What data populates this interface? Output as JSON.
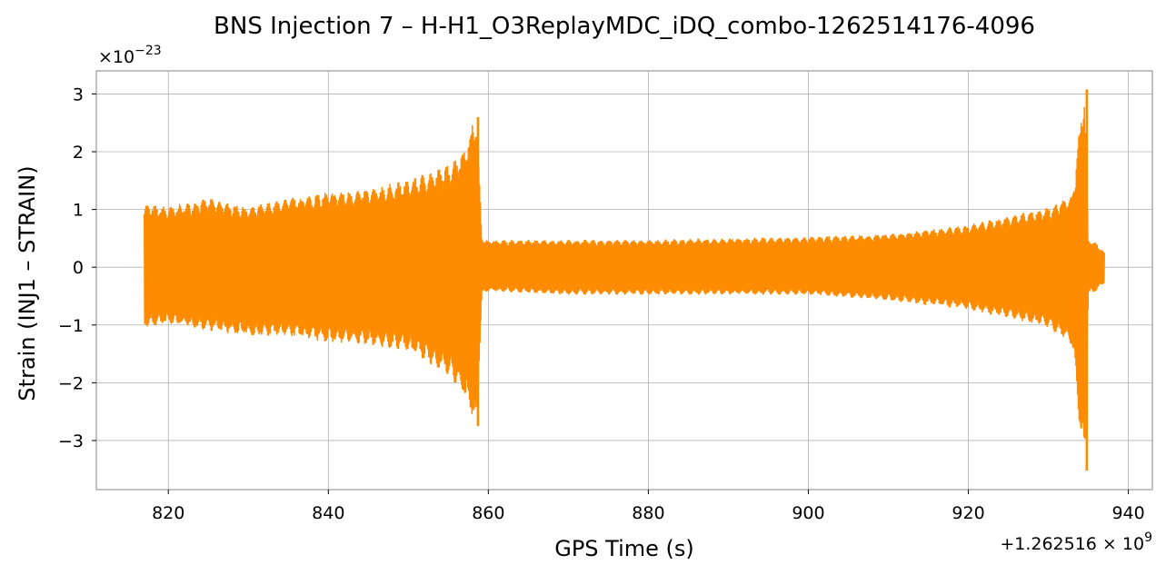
{
  "chart_data": {
    "type": "line",
    "title": "BNS Injection 7 – H-H1_O3ReplayMDC_iDQ_combo-1262514176-4096",
    "xlabel": "GPS Time (s)",
    "ylabel": "Strain (INJ1 – STRAIN)",
    "x_offset_label": "+1.262516 × 10",
    "x_offset_exponent": "9",
    "y_scale_label": "×10",
    "y_scale_exponent": "−23",
    "xlim": [
      811,
      943
    ],
    "ylim": [
      -3.85,
      3.4
    ],
    "xticks": [
      820,
      840,
      860,
      880,
      900,
      920,
      940
    ],
    "xtick_labels": [
      "820",
      "840",
      "860",
      "880",
      "900",
      "920",
      "940"
    ],
    "yticks": [
      -3,
      -2,
      -1,
      0,
      1,
      2,
      3
    ],
    "ytick_labels": [
      "−3",
      "−2",
      "−1",
      "0",
      "1",
      "2",
      "3"
    ],
    "grid": true,
    "line_color": "#ff8c00",
    "envelope": {
      "x": [
        817,
        820,
        825,
        830,
        835,
        840,
        845,
        850,
        855,
        857,
        858.5,
        859.2,
        860,
        870,
        880,
        890,
        900,
        910,
        920,
        925,
        930,
        933,
        934.5,
        935,
        935.5,
        937
      ],
      "upper": [
        1.05,
        1.0,
        1.15,
        1.0,
        1.15,
        1.25,
        1.3,
        1.45,
        1.7,
        2.0,
        2.6,
        0.5,
        0.45,
        0.45,
        0.45,
        0.48,
        0.5,
        0.55,
        0.7,
        0.85,
        1.0,
        1.2,
        3.05,
        0.45,
        0.45,
        0.25
      ],
      "lower": [
        -1.0,
        -0.95,
        -1.05,
        -1.15,
        -1.15,
        -1.25,
        -1.3,
        -1.4,
        -1.8,
        -2.2,
        -2.75,
        -0.45,
        -0.4,
        -0.45,
        -0.45,
        -0.45,
        -0.45,
        -0.55,
        -0.7,
        -0.85,
        -1.0,
        -1.3,
        -3.5,
        -0.4,
        -0.45,
        -0.25
      ],
      "burst_peaks": [
        {
          "x": 858.7,
          "y": 2.6
        },
        {
          "x": 858.7,
          "y": -2.75
        },
        {
          "x": 934.8,
          "y": 3.08
        },
        {
          "x": 934.8,
          "y": -3.52
        }
      ]
    }
  }
}
